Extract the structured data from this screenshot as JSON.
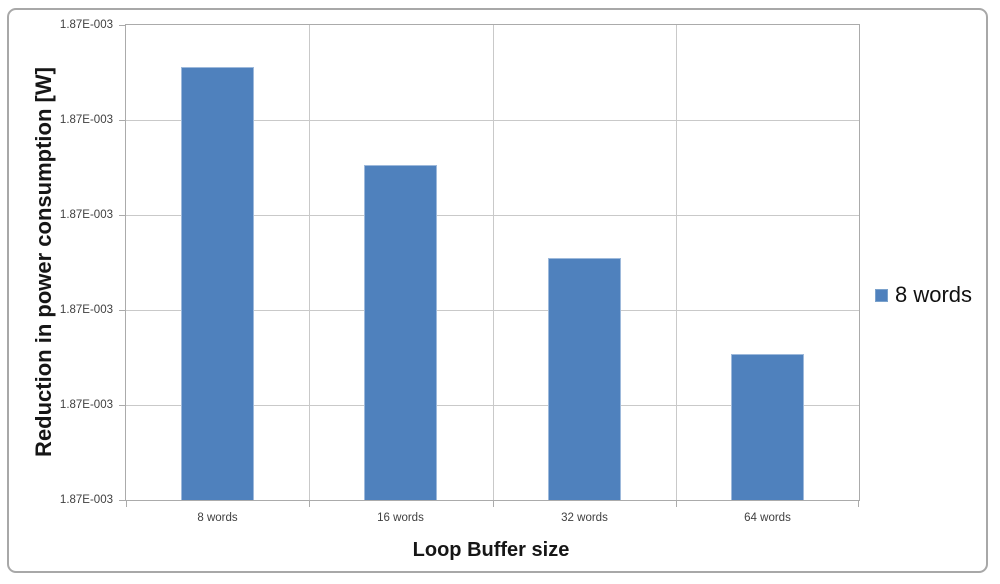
{
  "chart": {
    "y_axis": {
      "title": "Reduction in power consumption [W]",
      "tick_labels": [
        "1.87E-003",
        "1.87E-003",
        "1.87E-003",
        "1.87E-003",
        "1.87E-003",
        "1.87E-003"
      ]
    },
    "x_axis": {
      "title": "Loop Buffer size",
      "category_labels": [
        "8 words",
        "16 words",
        "32 words",
        "64 words"
      ]
    },
    "legend": {
      "items": [
        {
          "label": "8 words",
          "marker_color": "#4f81bd"
        }
      ]
    }
  },
  "chart_data": {
    "type": "bar",
    "title": "",
    "xlabel": "Loop Buffer size",
    "ylabel": "Reduction in power consumption [W]",
    "categories": [
      "8 words",
      "16 words",
      "32 words",
      "64 words"
    ],
    "y_tick_labels": [
      "1.87E-003",
      "1.87E-003",
      "1.87E-003",
      "1.87E-003",
      "1.87E-003",
      "1.87E-003"
    ],
    "series": [
      {
        "name": "8 words",
        "values_estimated_W": [
          0.0018696,
          0.0018685,
          0.0018676,
          0.0018665
        ],
        "bar_height_fraction_of_axis": [
          0.911,
          0.706,
          0.51,
          0.308
        ]
      }
    ],
    "axis_note": "All six y-axis gridline labels display the same rounded value 1.87E-003; bar values estimated from gridline spacing (each bar ~one gridline interval lower than previous).",
    "grid": "on",
    "legend_position": "right"
  },
  "colors": {
    "bar_fill": "#4f81bd",
    "bar_border": "#9db9db",
    "gridline": "#c9c9c9",
    "axis_line": "#ababab",
    "tick_text": "#404040",
    "title_text": "#161616",
    "frame_border": "#a8a8a8",
    "background": "#ffffff"
  }
}
